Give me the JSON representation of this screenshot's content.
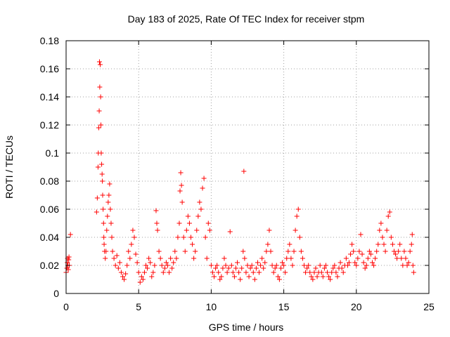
{
  "chart_data": {
    "type": "scatter",
    "title": "Day 183 of 2025, Rate Of TEC Index for receiver stpm",
    "xlabel": "GPS time / hours",
    "ylabel": "ROTI / TECUs",
    "xlim": [
      0,
      25
    ],
    "ylim": [
      0,
      0.18
    ],
    "x_ticks": [
      "0",
      "5",
      "10",
      "15",
      "20",
      "25"
    ],
    "y_ticks": [
      "0",
      "0.02",
      "0.04",
      "0.06",
      "0.08",
      "0.1",
      "0.12",
      "0.14",
      "0.16",
      "0.18"
    ],
    "grid": true,
    "marker": "plus",
    "color": "#ff0000",
    "points": [
      [
        0.0,
        0.015
      ],
      [
        0.05,
        0.018
      ],
      [
        0.08,
        0.022
      ],
      [
        0.1,
        0.025
      ],
      [
        0.12,
        0.02
      ],
      [
        0.15,
        0.017
      ],
      [
        0.18,
        0.024
      ],
      [
        0.2,
        0.026
      ],
      [
        0.22,
        0.02
      ],
      [
        0.3,
        0.042
      ],
      [
        2.1,
        0.058
      ],
      [
        2.15,
        0.068
      ],
      [
        2.2,
        0.09
      ],
      [
        2.22,
        0.1
      ],
      [
        2.25,
        0.118
      ],
      [
        2.28,
        0.13
      ],
      [
        2.3,
        0.165
      ],
      [
        2.32,
        0.147
      ],
      [
        2.35,
        0.163
      ],
      [
        2.38,
        0.14
      ],
      [
        2.4,
        0.12
      ],
      [
        2.42,
        0.1
      ],
      [
        2.45,
        0.092
      ],
      [
        2.48,
        0.085
      ],
      [
        2.5,
        0.08
      ],
      [
        2.52,
        0.07
      ],
      [
        2.55,
        0.06
      ],
      [
        2.58,
        0.05
      ],
      [
        2.6,
        0.04
      ],
      [
        2.62,
        0.035
      ],
      [
        2.65,
        0.03
      ],
      [
        2.7,
        0.025
      ],
      [
        2.75,
        0.03
      ],
      [
        2.8,
        0.045
      ],
      [
        2.85,
        0.055
      ],
      [
        2.9,
        0.065
      ],
      [
        2.95,
        0.07
      ],
      [
        3.0,
        0.078
      ],
      [
        3.05,
        0.06
      ],
      [
        3.1,
        0.05
      ],
      [
        3.15,
        0.04
      ],
      [
        3.2,
        0.03
      ],
      [
        3.3,
        0.025
      ],
      [
        3.4,
        0.02
      ],
      [
        3.5,
        0.027
      ],
      [
        3.6,
        0.018
      ],
      [
        3.7,
        0.022
      ],
      [
        3.8,
        0.015
      ],
      [
        3.9,
        0.012
      ],
      [
        4.0,
        0.01
      ],
      [
        4.1,
        0.014
      ],
      [
        4.2,
        0.02
      ],
      [
        4.3,
        0.03
      ],
      [
        4.4,
        0.025
      ],
      [
        4.5,
        0.035
      ],
      [
        4.6,
        0.045
      ],
      [
        4.7,
        0.04
      ],
      [
        4.8,
        0.028
      ],
      [
        4.9,
        0.022
      ],
      [
        5.0,
        0.015
      ],
      [
        5.1,
        0.008
      ],
      [
        5.2,
        0.012
      ],
      [
        5.3,
        0.01
      ],
      [
        5.4,
        0.015
      ],
      [
        5.5,
        0.02
      ],
      [
        5.6,
        0.018
      ],
      [
        5.7,
        0.025
      ],
      [
        5.8,
        0.022
      ],
      [
        5.9,
        0.012
      ],
      [
        6.0,
        0.015
      ],
      [
        6.1,
        0.02
      ],
      [
        6.2,
        0.059
      ],
      [
        6.25,
        0.05
      ],
      [
        6.3,
        0.045
      ],
      [
        6.4,
        0.03
      ],
      [
        6.5,
        0.025
      ],
      [
        6.6,
        0.02
      ],
      [
        6.7,
        0.015
      ],
      [
        6.8,
        0.018
      ],
      [
        6.9,
        0.022
      ],
      [
        7.0,
        0.02
      ],
      [
        7.1,
        0.015
      ],
      [
        7.2,
        0.025
      ],
      [
        7.3,
        0.018
      ],
      [
        7.4,
        0.022
      ],
      [
        7.5,
        0.03
      ],
      [
        7.6,
        0.025
      ],
      [
        7.7,
        0.04
      ],
      [
        7.8,
        0.05
      ],
      [
        7.85,
        0.073
      ],
      [
        7.9,
        0.086
      ],
      [
        7.95,
        0.077
      ],
      [
        8.0,
        0.065
      ],
      [
        8.1,
        0.04
      ],
      [
        8.2,
        0.03
      ],
      [
        8.3,
        0.045
      ],
      [
        8.4,
        0.055
      ],
      [
        8.5,
        0.05
      ],
      [
        8.6,
        0.04
      ],
      [
        8.7,
        0.035
      ],
      [
        8.8,
        0.025
      ],
      [
        8.9,
        0.03
      ],
      [
        9.0,
        0.045
      ],
      [
        9.1,
        0.055
      ],
      [
        9.2,
        0.065
      ],
      [
        9.3,
        0.06
      ],
      [
        9.4,
        0.075
      ],
      [
        9.5,
        0.082
      ],
      [
        9.6,
        0.04
      ],
      [
        9.7,
        0.025
      ],
      [
        9.8,
        0.05
      ],
      [
        9.9,
        0.045
      ],
      [
        10.0,
        0.02
      ],
      [
        10.1,
        0.015
      ],
      [
        10.2,
        0.012
      ],
      [
        10.3,
        0.018
      ],
      [
        10.4,
        0.02
      ],
      [
        10.5,
        0.015
      ],
      [
        10.6,
        0.01
      ],
      [
        10.7,
        0.012
      ],
      [
        10.8,
        0.018
      ],
      [
        10.9,
        0.025
      ],
      [
        11.0,
        0.02
      ],
      [
        11.1,
        0.015
      ],
      [
        11.2,
        0.018
      ],
      [
        11.3,
        0.044
      ],
      [
        11.4,
        0.02
      ],
      [
        11.5,
        0.015
      ],
      [
        11.6,
        0.012
      ],
      [
        11.7,
        0.018
      ],
      [
        11.8,
        0.022
      ],
      [
        11.9,
        0.015
      ],
      [
        12.0,
        0.01
      ],
      [
        12.1,
        0.018
      ],
      [
        12.2,
        0.03
      ],
      [
        12.25,
        0.087
      ],
      [
        12.3,
        0.025
      ],
      [
        12.4,
        0.015
      ],
      [
        12.5,
        0.02
      ],
      [
        12.6,
        0.012
      ],
      [
        12.7,
        0.018
      ],
      [
        12.8,
        0.02
      ],
      [
        12.9,
        0.015
      ],
      [
        13.0,
        0.01
      ],
      [
        13.1,
        0.018
      ],
      [
        13.2,
        0.022
      ],
      [
        13.3,
        0.015
      ],
      [
        13.4,
        0.02
      ],
      [
        13.5,
        0.025
      ],
      [
        13.6,
        0.018
      ],
      [
        13.7,
        0.022
      ],
      [
        13.8,
        0.03
      ],
      [
        13.9,
        0.035
      ],
      [
        14.0,
        0.045
      ],
      [
        14.1,
        0.03
      ],
      [
        14.2,
        0.02
      ],
      [
        14.3,
        0.015
      ],
      [
        14.4,
        0.018
      ],
      [
        14.5,
        0.02
      ],
      [
        14.6,
        0.012
      ],
      [
        14.7,
        0.01
      ],
      [
        14.8,
        0.018
      ],
      [
        14.9,
        0.022
      ],
      [
        15.0,
        0.02
      ],
      [
        15.1,
        0.015
      ],
      [
        15.2,
        0.025
      ],
      [
        15.3,
        0.03
      ],
      [
        15.4,
        0.035
      ],
      [
        15.5,
        0.025
      ],
      [
        15.6,
        0.02
      ],
      [
        15.7,
        0.03
      ],
      [
        15.8,
        0.045
      ],
      [
        15.9,
        0.055
      ],
      [
        16.0,
        0.06
      ],
      [
        16.1,
        0.04
      ],
      [
        16.2,
        0.03
      ],
      [
        16.3,
        0.025
      ],
      [
        16.4,
        0.02
      ],
      [
        16.5,
        0.015
      ],
      [
        16.6,
        0.018
      ],
      [
        16.7,
        0.02
      ],
      [
        16.8,
        0.015
      ],
      [
        16.9,
        0.012
      ],
      [
        17.0,
        0.01
      ],
      [
        17.1,
        0.015
      ],
      [
        17.2,
        0.018
      ],
      [
        17.3,
        0.012
      ],
      [
        17.4,
        0.015
      ],
      [
        17.5,
        0.02
      ],
      [
        17.6,
        0.015
      ],
      [
        17.7,
        0.012
      ],
      [
        17.8,
        0.018
      ],
      [
        17.9,
        0.02
      ],
      [
        18.0,
        0.015
      ],
      [
        18.1,
        0.012
      ],
      [
        18.2,
        0.01
      ],
      [
        18.3,
        0.015
      ],
      [
        18.4,
        0.018
      ],
      [
        18.5,
        0.02
      ],
      [
        18.6,
        0.015
      ],
      [
        18.7,
        0.012
      ],
      [
        18.8,
        0.018
      ],
      [
        18.9,
        0.022
      ],
      [
        19.0,
        0.018
      ],
      [
        19.1,
        0.015
      ],
      [
        19.2,
        0.02
      ],
      [
        19.3,
        0.025
      ],
      [
        19.4,
        0.02
      ],
      [
        19.5,
        0.022
      ],
      [
        19.6,
        0.028
      ],
      [
        19.7,
        0.035
      ],
      [
        19.8,
        0.03
      ],
      [
        19.9,
        0.022
      ],
      [
        20.0,
        0.02
      ],
      [
        20.1,
        0.025
      ],
      [
        20.2,
        0.03
      ],
      [
        20.3,
        0.042
      ],
      [
        20.4,
        0.028
      ],
      [
        20.5,
        0.022
      ],
      [
        20.6,
        0.018
      ],
      [
        20.7,
        0.02
      ],
      [
        20.8,
        0.025
      ],
      [
        20.9,
        0.03
      ],
      [
        21.0,
        0.028
      ],
      [
        21.1,
        0.022
      ],
      [
        21.2,
        0.02
      ],
      [
        21.3,
        0.025
      ],
      [
        21.4,
        0.03
      ],
      [
        21.5,
        0.035
      ],
      [
        21.6,
        0.045
      ],
      [
        21.7,
        0.05
      ],
      [
        21.8,
        0.04
      ],
      [
        21.9,
        0.035
      ],
      [
        22.0,
        0.03
      ],
      [
        22.1,
        0.045
      ],
      [
        22.2,
        0.055
      ],
      [
        22.3,
        0.058
      ],
      [
        22.4,
        0.04
      ],
      [
        22.5,
        0.035
      ],
      [
        22.6,
        0.03
      ],
      [
        22.7,
        0.028
      ],
      [
        22.8,
        0.025
      ],
      [
        22.9,
        0.03
      ],
      [
        23.0,
        0.035
      ],
      [
        23.1,
        0.025
      ],
      [
        23.2,
        0.02
      ],
      [
        23.3,
        0.03
      ],
      [
        23.4,
        0.025
      ],
      [
        23.5,
        0.02
      ],
      [
        23.6,
        0.022
      ],
      [
        23.7,
        0.03
      ],
      [
        23.8,
        0.035
      ],
      [
        23.85,
        0.042
      ],
      [
        23.9,
        0.02
      ],
      [
        23.95,
        0.015
      ]
    ]
  }
}
